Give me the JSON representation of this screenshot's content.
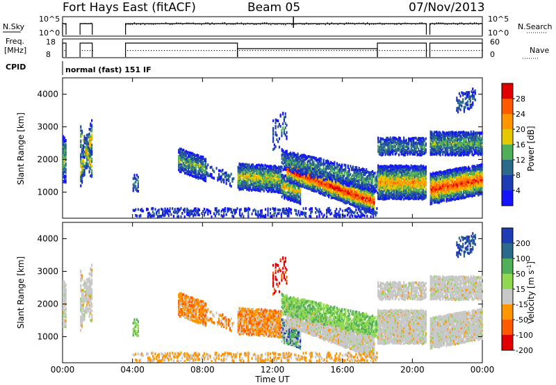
{
  "header": {
    "title": "Fort Hays East (fitACF)",
    "beam": "Beam 05",
    "date": "07/Nov/2013"
  },
  "top_panels": {
    "nsky_label": "N.Sky",
    "nsky_ticks": [
      "10^5",
      "10^0"
    ],
    "nsearch_label": "N.Search",
    "nsearch_ticks": [
      "10^5",
      "10^0"
    ],
    "freq_label_line1": "Freq.",
    "freq_label_line2": "[MHz]",
    "freq_ticks": [
      "18",
      "8"
    ],
    "nave_label": "Nave",
    "nave_ticks": [
      "60",
      "0"
    ],
    "cpid_label": "CPID",
    "cpid_text": "normal (fast) 151 IF"
  },
  "chart_data": [
    {
      "type": "heatmap",
      "name": "power",
      "ylabel": "Slant Range [km]",
      "yticks": [
        "4000",
        "3000",
        "2000",
        "1000"
      ],
      "ylim": [
        200,
        4500
      ],
      "xlabel": "",
      "xticks": [
        "00:00",
        "04:00",
        "08:00",
        "12:00",
        "16:00",
        "20:00",
        "00:00"
      ],
      "xlim_hours": [
        0,
        24
      ],
      "colorbar": {
        "label": "Power [dB]",
        "ticks": [
          "28",
          "24",
          "20",
          "16",
          "12",
          "8",
          "4"
        ],
        "colors": [
          "#e10000",
          "#ff5a00",
          "#ff9600",
          "#e6c800",
          "#50b05a",
          "#2c6a8c",
          "#1e3cb4",
          "#1414ff"
        ]
      }
    },
    {
      "type": "heatmap",
      "name": "velocity",
      "ylabel": "Slant Range [km]",
      "yticks": [
        "4000",
        "3000",
        "2000",
        "1000"
      ],
      "ylim": [
        200,
        4500
      ],
      "xlabel": "Time UT",
      "xticks": [
        "00:00",
        "04:00",
        "08:00",
        "12:00",
        "16:00",
        "20:00",
        "00:00"
      ],
      "xlim_hours": [
        0,
        24
      ],
      "colorbar": {
        "label": "Velocity [m s^-1]",
        "ticks": [
          "200",
          "100",
          "50",
          "15",
          "-15",
          "-50",
          "-100",
          "-200"
        ],
        "colors": [
          "#1e3cb4",
          "#2c6a8c",
          "#50b05a",
          "#90d850",
          "#c8c8c8",
          "#ff9600",
          "#ff5a00",
          "#e10000"
        ]
      }
    }
  ]
}
